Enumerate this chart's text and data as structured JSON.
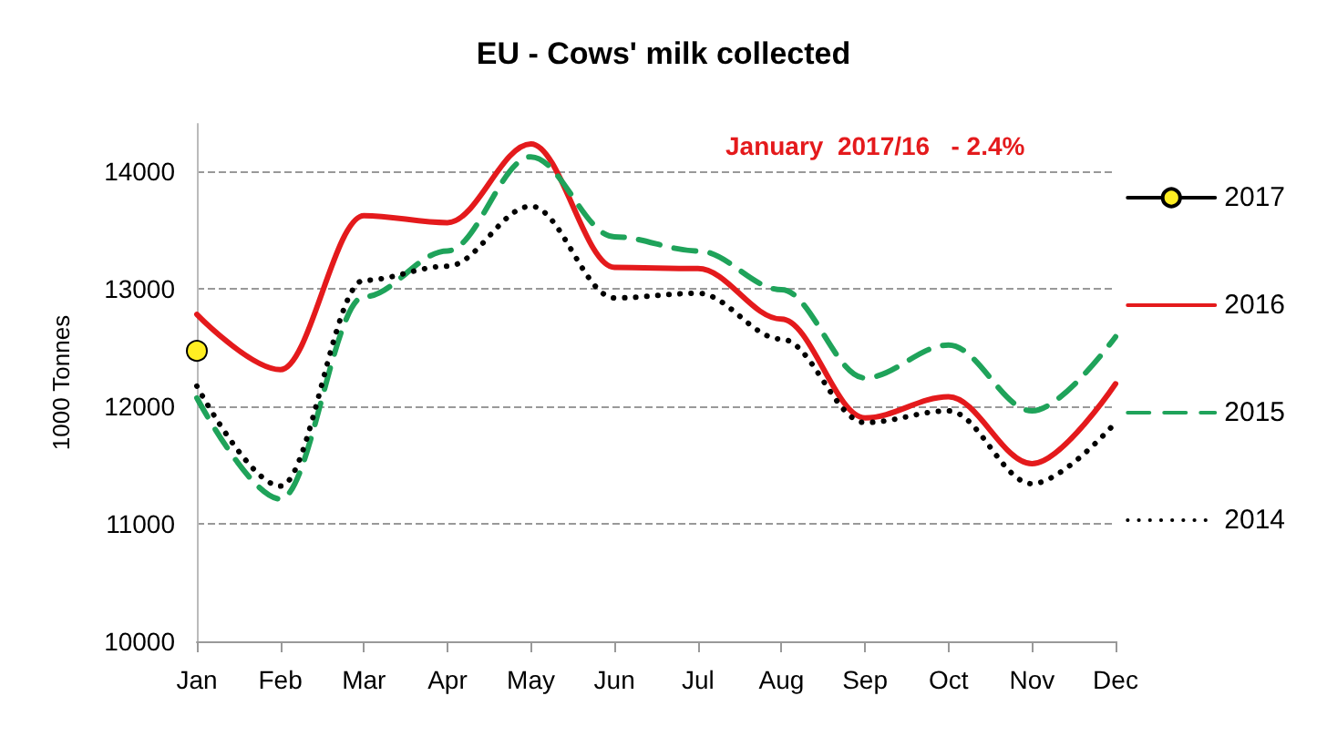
{
  "chart_data": {
    "type": "line",
    "title": "EU - Cows' milk collected",
    "ylabel": "1000 Tonnes",
    "annotations": [
      "January  2017/16   - 2.4%"
    ],
    "categories": [
      "Jan",
      "Feb",
      "Mar",
      "Apr",
      "May",
      "Jun",
      "Jul",
      "Aug",
      "Sep",
      "Oct",
      "Nov",
      "Dec"
    ],
    "series": [
      {
        "name": "2017",
        "color": "#000000",
        "marker": "circle",
        "line_style": "solid",
        "values": [
          12470,
          null,
          null,
          null,
          null,
          null,
          null,
          null,
          null,
          null,
          null,
          null
        ]
      },
      {
        "name": "2016",
        "color": "#e41a1c",
        "marker": "none",
        "line_style": "solid",
        "values": [
          12780,
          12310,
          13620,
          13560,
          14230,
          13180,
          13170,
          12740,
          11900,
          12080,
          11510,
          12190
        ]
      },
      {
        "name": "2015",
        "color": "#1fa35a",
        "marker": "none",
        "line_style": "dashed",
        "values": [
          12070,
          11210,
          12930,
          13320,
          14120,
          13440,
          13320,
          12990,
          12240,
          12520,
          11960,
          12590
        ]
      },
      {
        "name": "2014",
        "color": "#000000",
        "marker": "none",
        "line_style": "dotted",
        "values": [
          12170,
          11320,
          13070,
          13190,
          13700,
          12920,
          12960,
          12570,
          11860,
          11960,
          11340,
          11860
        ]
      }
    ],
    "ylim": [
      10000,
      14400
    ],
    "yticks": [
      10000,
      11000,
      12000,
      13000,
      14000
    ],
    "grid": "y",
    "legend": "right"
  }
}
